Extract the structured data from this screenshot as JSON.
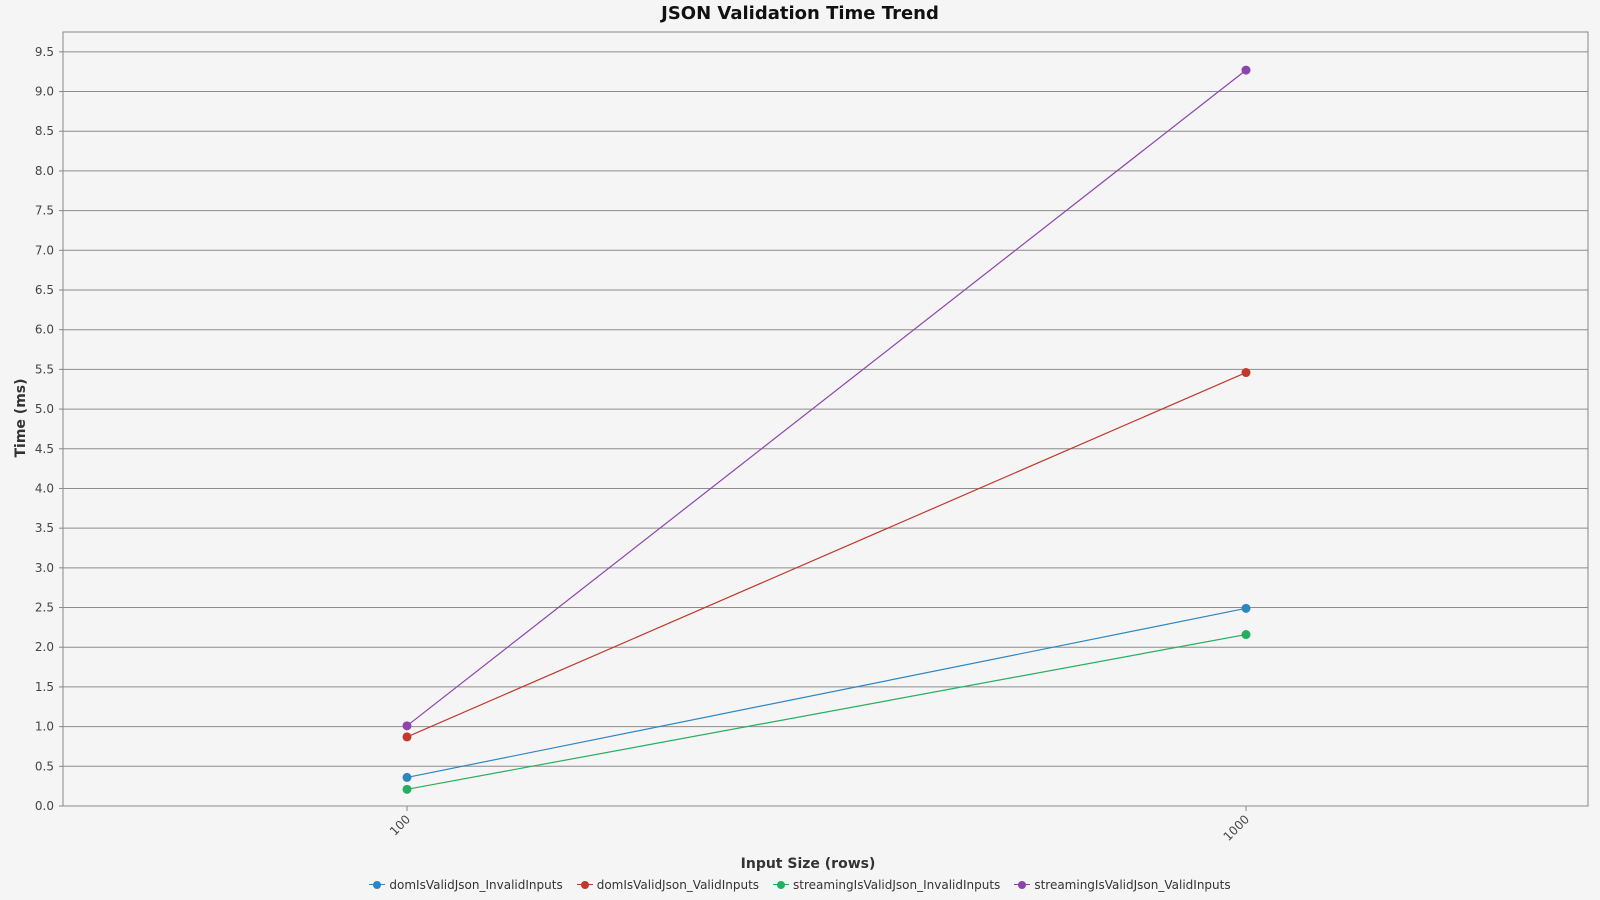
{
  "chart_data": {
    "type": "line",
    "title": "JSON Validation Time Trend",
    "xlabel": "Input Size (rows)",
    "ylabel": "Time (ms)",
    "categories": [
      "100",
      "1000"
    ],
    "ylim": [
      0,
      9.75
    ],
    "yticks": [
      0.0,
      0.5,
      1.0,
      1.5,
      2.0,
      2.5,
      3.0,
      3.5,
      4.0,
      4.5,
      5.0,
      5.5,
      6.0,
      6.5,
      7.0,
      7.5,
      8.0,
      8.5,
      9.0,
      9.5
    ],
    "grid": true,
    "legend_position": "bottom",
    "series": [
      {
        "name": "domIsValidJson_InvalidInputs",
        "color": "#2e86c1",
        "values": [
          0.36,
          2.49
        ]
      },
      {
        "name": "domIsValidJson_ValidInputs",
        "color": "#c0392b",
        "values": [
          0.87,
          5.46
        ]
      },
      {
        "name": "streamingIsValidJson_InvalidInputs",
        "color": "#27ae60",
        "values": [
          0.21,
          2.16
        ]
      },
      {
        "name": "streamingIsValidJson_ValidInputs",
        "color": "#8e44ad",
        "values": [
          1.01,
          9.27
        ]
      }
    ]
  }
}
